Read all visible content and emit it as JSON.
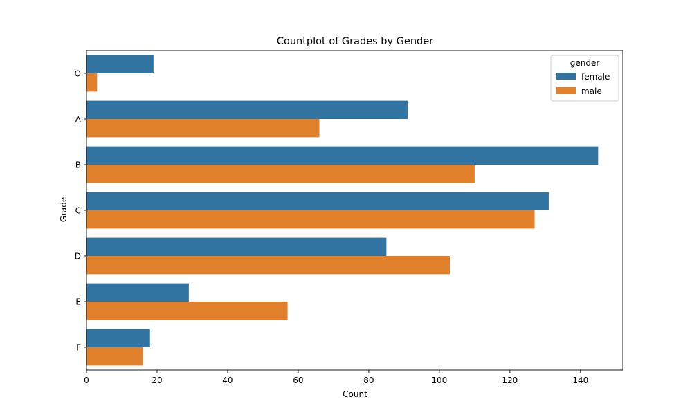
{
  "chart_data": {
    "type": "bar",
    "orientation": "horizontal",
    "title": "Countplot of Grades by Gender",
    "xlabel": "Count",
    "ylabel": "Grade",
    "categories": [
      "O",
      "A",
      "B",
      "C",
      "D",
      "E",
      "F"
    ],
    "series": [
      {
        "name": "female",
        "color": "#3274a1",
        "values": [
          19,
          91,
          145,
          131,
          85,
          29,
          18
        ]
      },
      {
        "name": "male",
        "color": "#e1812c",
        "values": [
          3,
          66,
          110,
          127,
          103,
          57,
          16
        ]
      }
    ],
    "xlim": [
      0,
      152
    ],
    "xticks": [
      0,
      20,
      40,
      60,
      80,
      100,
      120,
      140
    ],
    "grid": false,
    "legend": {
      "title": "gender",
      "placement": "top-right"
    }
  }
}
